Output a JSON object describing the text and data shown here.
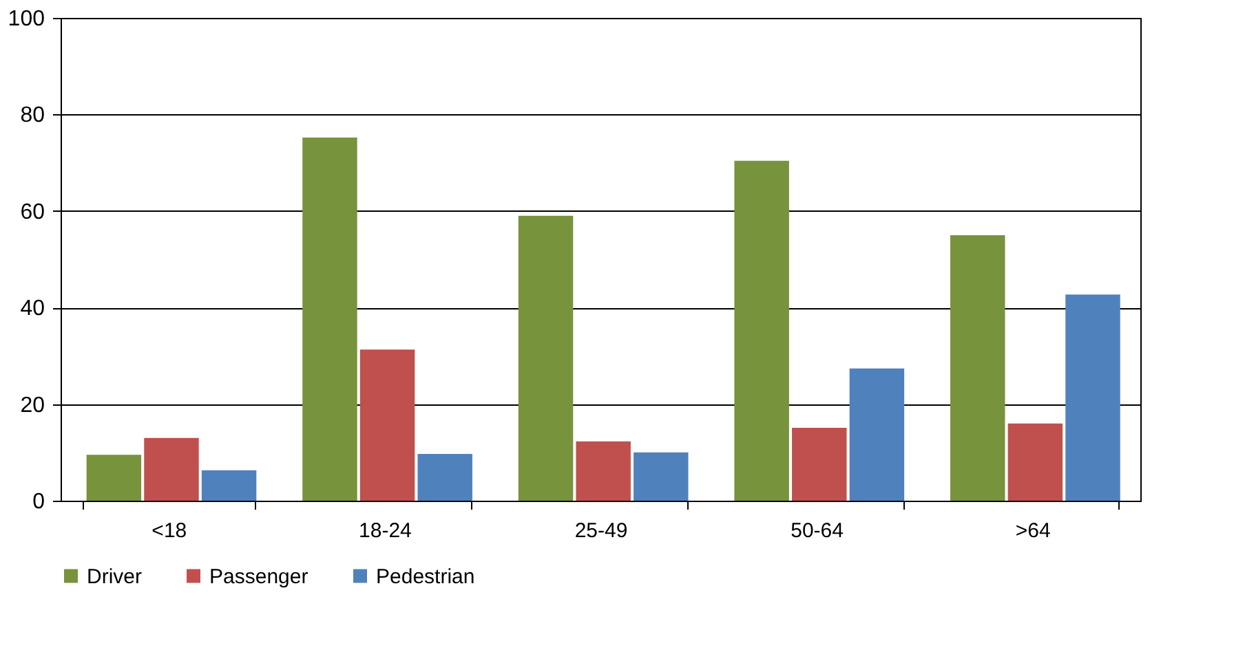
{
  "chart_data": {
    "type": "bar",
    "categories": [
      "<18",
      "18-24",
      "25-49",
      "50-64",
      ">64"
    ],
    "series": [
      {
        "name": "Driver",
        "color": "#77933c",
        "values": [
          9.5,
          75.2,
          59,
          70.4,
          55
        ]
      },
      {
        "name": "Passenger",
        "color": "#c0504d",
        "values": [
          13,
          31.3,
          12.3,
          15.1,
          16
        ]
      },
      {
        "name": "Pedestrian",
        "color": "#4f81bd",
        "values": [
          6.3,
          9.7,
          10,
          27.4,
          42.7
        ]
      }
    ],
    "ylim": [
      0,
      100
    ],
    "yticks": [
      0,
      20,
      40,
      60,
      80,
      100
    ],
    "grid": "y",
    "legend": "bottom"
  }
}
